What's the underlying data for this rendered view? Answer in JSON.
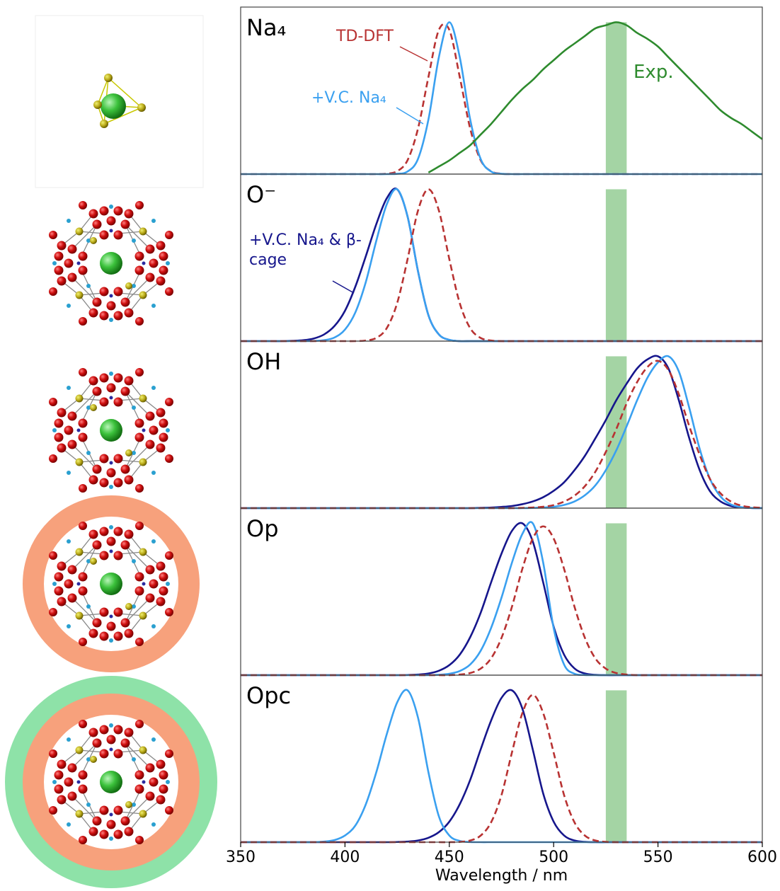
{
  "chart_data": [
    {
      "type": "line",
      "title": "Na₄",
      "xlim": [
        350,
        600
      ],
      "ylim": [
        0,
        1.1
      ],
      "x": [
        350,
        355,
        360,
        365,
        370,
        375,
        380,
        385,
        390,
        395,
        400,
        405,
        410,
        415,
        420,
        425,
        430,
        435,
        440,
        445,
        450,
        455,
        460,
        465,
        470,
        475,
        480,
        485,
        490,
        495,
        500,
        505,
        510,
        515,
        520,
        525,
        530,
        535,
        540,
        545,
        550,
        555,
        560,
        565,
        570,
        575,
        580,
        585,
        590,
        595,
        600
      ],
      "highlight": {
        "x": [
          525,
          535
        ],
        "y": 1,
        "color": "#94cc94"
      },
      "series": [
        {
          "name": "TD-DFT",
          "color": "#b83232",
          "linestyle": "dashed",
          "values": [
            0,
            0,
            0,
            0,
            0,
            0,
            0,
            0,
            0,
            0,
            0,
            0,
            0,
            0,
            0.003,
            0.019,
            0.092,
            0.3,
            0.64,
            0.95,
            0.95,
            0.64,
            0.3,
            0.092,
            0.019,
            0.003,
            0,
            0,
            0,
            0,
            0,
            0,
            0,
            0,
            0,
            0,
            0,
            0,
            0,
            0,
            0,
            0,
            0,
            0,
            0,
            0,
            0,
            0,
            0,
            0,
            0
          ]
        },
        {
          "name": "+V.C. Na₄",
          "color": "#3aa0f0",
          "linestyle": "solid",
          "values": [
            0,
            0,
            0,
            0,
            0,
            0,
            0,
            0,
            0,
            0,
            0,
            0,
            0,
            0,
            0,
            0.002,
            0.017,
            0.1,
            0.36,
            0.77,
            1,
            0.77,
            0.36,
            0.1,
            0.017,
            0.002,
            0,
            0,
            0,
            0,
            0,
            0,
            0,
            0,
            0,
            0,
            0,
            0,
            0,
            0,
            0,
            0,
            0,
            0,
            0,
            0,
            0,
            0,
            0,
            0,
            0
          ]
        },
        {
          "name": "Exp.",
          "color": "#2e8b2e",
          "linestyle": "solid",
          "values": [
            null,
            null,
            null,
            null,
            null,
            null,
            null,
            null,
            null,
            null,
            null,
            null,
            null,
            null,
            null,
            null,
            null,
            null,
            0.01,
            0.05,
            0.09,
            0.14,
            0.19,
            0.26,
            0.33,
            0.41,
            0.49,
            0.56,
            0.62,
            0.69,
            0.75,
            0.81,
            0.86,
            0.91,
            0.96,
            0.98,
            1.0,
            0.98,
            0.93,
            0.89,
            0.84,
            0.77,
            0.7,
            0.63,
            0.56,
            0.49,
            0.42,
            0.37,
            0.33,
            0.28,
            0.23
          ]
        }
      ]
    },
    {
      "type": "line",
      "title": "O⁻",
      "xlim": [
        350,
        600
      ],
      "ylim": [
        0,
        1.1
      ],
      "x": [
        350,
        355,
        360,
        365,
        370,
        375,
        380,
        385,
        390,
        395,
        400,
        405,
        410,
        415,
        420,
        425,
        430,
        435,
        440,
        445,
        450,
        455,
        460,
        465,
        470,
        475,
        480,
        485,
        490,
        495,
        500,
        505,
        510,
        515,
        520,
        525,
        530,
        535,
        540,
        545,
        550,
        555,
        560,
        565,
        570,
        575,
        580,
        585,
        590,
        595,
        600
      ],
      "highlight": {
        "x": [
          525,
          535
        ],
        "y": 1,
        "color": "#94cc94"
      },
      "series": [
        {
          "name": "+V.C. Na₄ & β-cage",
          "color": "#16168c",
          "linestyle": "solid",
          "values": [
            0,
            0,
            0,
            0,
            0,
            0.002,
            0.006,
            0.017,
            0.044,
            0.1,
            0.2,
            0.36,
            0.56,
            0.77,
            0.94,
            1,
            0.82,
            0.46,
            0.17,
            0.044,
            0.008,
            0,
            0,
            0,
            0,
            0,
            0,
            0,
            0,
            0,
            0,
            0,
            0,
            0,
            0,
            0,
            0,
            0,
            0,
            0,
            0,
            0,
            0,
            0,
            0,
            0,
            0,
            0,
            0,
            0,
            0
          ]
        },
        {
          "color": "#3aa0f0",
          "linestyle": "solid",
          "values": [
            0,
            0,
            0,
            0,
            0,
            0,
            0,
            0.001,
            0.006,
            0.024,
            0.076,
            0.19,
            0.39,
            0.66,
            0.9,
            1,
            0.82,
            0.46,
            0.17,
            0.044,
            0.008,
            0,
            0,
            0,
            0,
            0,
            0,
            0,
            0,
            0,
            0,
            0,
            0,
            0,
            0,
            0,
            0,
            0,
            0,
            0,
            0,
            0,
            0,
            0,
            0,
            0,
            0,
            0,
            0,
            0,
            0
          ]
        },
        {
          "color": "#b83232",
          "linestyle": "dashed",
          "values": [
            0,
            0,
            0,
            0,
            0,
            0,
            0,
            0,
            0,
            0,
            0,
            0,
            0.004,
            0.021,
            0.085,
            0.25,
            0.54,
            0.86,
            1,
            0.86,
            0.54,
            0.25,
            0.085,
            0.021,
            0.004,
            0,
            0,
            0,
            0,
            0,
            0,
            0,
            0,
            0,
            0,
            0,
            0,
            0,
            0,
            0,
            0,
            0,
            0,
            0,
            0,
            0,
            0,
            0,
            0,
            0,
            0
          ]
        }
      ]
    },
    {
      "type": "line",
      "title": "OH",
      "xlim": [
        350,
        600
      ],
      "ylim": [
        0,
        1.1
      ],
      "x": [
        350,
        355,
        360,
        365,
        370,
        375,
        380,
        385,
        390,
        395,
        400,
        405,
        410,
        415,
        420,
        425,
        430,
        435,
        440,
        445,
        450,
        455,
        460,
        465,
        470,
        475,
        480,
        485,
        490,
        495,
        500,
        505,
        510,
        515,
        520,
        525,
        530,
        535,
        540,
        545,
        550,
        555,
        560,
        565,
        570,
        575,
        580,
        585,
        590,
        595,
        600
      ],
      "highlight": {
        "x": [
          525,
          535
        ],
        "y": 1,
        "color": "#94cc94"
      },
      "series": [
        {
          "color": "#16168c",
          "linestyle": "solid",
          "values": [
            0,
            0,
            0,
            0,
            0,
            0,
            0,
            0,
            0,
            0,
            0,
            0,
            0,
            0,
            0,
            0,
            0,
            0,
            0,
            0,
            0,
            0,
            0,
            0.002,
            0.004,
            0.008,
            0.014,
            0.026,
            0.044,
            0.072,
            0.114,
            0.17,
            0.25,
            0.345,
            0.46,
            0.58,
            0.71,
            0.82,
            0.92,
            0.98,
            1,
            0.92,
            0.71,
            0.46,
            0.25,
            0.11,
            0.044,
            0.014,
            0.004,
            0.001,
            0
          ]
        },
        {
          "color": "#3aa0f0",
          "linestyle": "solid",
          "values": [
            0,
            0,
            0,
            0,
            0,
            0,
            0,
            0,
            0,
            0,
            0,
            0,
            0,
            0,
            0,
            0,
            0,
            0,
            0,
            0,
            0,
            0,
            0,
            0,
            0,
            0,
            0,
            0,
            0.0015,
            0.004,
            0.009,
            0.021,
            0.044,
            0.085,
            0.15,
            0.25,
            0.38,
            0.54,
            0.71,
            0.86,
            0.96,
            1,
            0.9,
            0.66,
            0.39,
            0.19,
            0.076,
            0.024,
            0.006,
            0.001,
            0
          ]
        },
        {
          "color": "#b83232",
          "linestyle": "dashed",
          "values": [
            0,
            0,
            0,
            0,
            0,
            0,
            0,
            0,
            0,
            0,
            0,
            0,
            0,
            0,
            0,
            0,
            0,
            0,
            0,
            0,
            0,
            0,
            0,
            0,
            0,
            0,
            0,
            0.0015,
            0.004,
            0.009,
            0.02,
            0.043,
            0.082,
            0.145,
            0.24,
            0.37,
            0.52,
            0.69,
            0.83,
            0.93,
            0.97,
            0.91,
            0.75,
            0.54,
            0.35,
            0.19,
            0.097,
            0.043,
            0.016,
            0.006,
            0.002
          ]
        }
      ]
    },
    {
      "type": "line",
      "title": "Op",
      "xlim": [
        350,
        600
      ],
      "ylim": [
        0,
        1.1
      ],
      "x": [
        350,
        355,
        360,
        365,
        370,
        375,
        380,
        385,
        390,
        395,
        400,
        405,
        410,
        415,
        420,
        425,
        430,
        435,
        440,
        445,
        450,
        455,
        460,
        465,
        470,
        475,
        480,
        485,
        490,
        495,
        500,
        505,
        510,
        515,
        520,
        525,
        530,
        535,
        540,
        545,
        550,
        555,
        560,
        565,
        570,
        575,
        580,
        585,
        590,
        595,
        600
      ],
      "highlight": {
        "x": [
          525,
          535
        ],
        "y": 1,
        "color": "#94cc94"
      },
      "series": [
        {
          "color": "#16168c",
          "linestyle": "solid",
          "values": [
            0,
            0,
            0,
            0,
            0,
            0,
            0,
            0,
            0,
            0,
            0,
            0,
            0,
            0,
            0,
            0,
            0.0012,
            0.004,
            0.011,
            0.029,
            0.066,
            0.135,
            0.25,
            0.41,
            0.61,
            0.8,
            0.95,
            1,
            0.88,
            0.61,
            0.32,
            0.135,
            0.044,
            0.011,
            0.002,
            0,
            0,
            0,
            0,
            0,
            0,
            0,
            0,
            0,
            0,
            0,
            0,
            0,
            0,
            0,
            0
          ]
        },
        {
          "color": "#3aa0f0",
          "linestyle": "solid",
          "values": [
            0,
            0,
            0,
            0,
            0,
            0,
            0,
            0,
            0,
            0,
            0,
            0,
            0,
            0,
            0,
            0,
            0,
            0,
            0,
            0.0025,
            0.009,
            0.027,
            0.07,
            0.16,
            0.31,
            0.51,
            0.74,
            0.93,
            1,
            0.74,
            0.31,
            0.07,
            0.009,
            0.001,
            0,
            0,
            0,
            0,
            0,
            0,
            0,
            0,
            0,
            0,
            0,
            0,
            0,
            0,
            0,
            0,
            0
          ]
        },
        {
          "color": "#b83232",
          "linestyle": "dashed",
          "values": [
            0,
            0,
            0,
            0,
            0,
            0,
            0,
            0,
            0,
            0,
            0,
            0,
            0,
            0,
            0,
            0,
            0,
            0,
            0,
            0,
            0,
            0.004,
            0.014,
            0.043,
            0.11,
            0.245,
            0.45,
            0.7,
            0.9,
            0.98,
            0.9,
            0.7,
            0.45,
            0.245,
            0.11,
            0.043,
            0.014,
            0.004,
            0,
            0,
            0,
            0,
            0,
            0,
            0,
            0,
            0,
            0,
            0,
            0,
            0
          ]
        }
      ]
    },
    {
      "type": "line",
      "title": "Opc",
      "xlim": [
        350,
        600
      ],
      "ylim": [
        0,
        1.1
      ],
      "xticks": [
        350,
        400,
        450,
        500,
        550,
        600
      ],
      "xlabel": "Wavelength / nm",
      "x": [
        350,
        355,
        360,
        365,
        370,
        375,
        380,
        385,
        390,
        395,
        400,
        405,
        410,
        415,
        420,
        425,
        430,
        435,
        440,
        445,
        450,
        455,
        460,
        465,
        470,
        475,
        480,
        485,
        490,
        495,
        500,
        505,
        510,
        515,
        520,
        525,
        530,
        535,
        540,
        545,
        550,
        555,
        560,
        565,
        570,
        575,
        580,
        585,
        590,
        595,
        600
      ],
      "highlight": {
        "x": [
          525,
          535
        ],
        "y": 1,
        "color": "#94cc94"
      },
      "series": [
        {
          "color": "#16168c",
          "linestyle": "solid",
          "values": [
            0,
            0,
            0,
            0,
            0,
            0,
            0,
            0,
            0,
            0,
            0,
            0,
            0,
            0,
            0,
            0.0012,
            0.004,
            0.011,
            0.029,
            0.066,
            0.135,
            0.25,
            0.41,
            0.61,
            0.8,
            0.95,
            1,
            0.88,
            0.61,
            0.32,
            0.135,
            0.044,
            0.011,
            0.002,
            0,
            0,
            0,
            0,
            0,
            0,
            0,
            0,
            0,
            0,
            0,
            0,
            0,
            0,
            0,
            0,
            0
          ]
        },
        {
          "color": "#3aa0f0",
          "linestyle": "solid",
          "values": [
            0,
            0,
            0,
            0,
            0,
            0,
            0,
            0,
            0.004,
            0.014,
            0.044,
            0.11,
            0.25,
            0.46,
            0.71,
            0.92,
            1,
            0.82,
            0.46,
            0.17,
            0.044,
            0.008,
            0.001,
            0,
            0,
            0,
            0,
            0,
            0,
            0,
            0,
            0,
            0,
            0,
            0,
            0,
            0,
            0,
            0,
            0,
            0,
            0,
            0,
            0,
            0,
            0,
            0,
            0,
            0,
            0,
            0
          ]
        },
        {
          "color": "#b83232",
          "linestyle": "dashed",
          "values": [
            0,
            0,
            0,
            0,
            0,
            0,
            0,
            0,
            0,
            0,
            0,
            0,
            0,
            0,
            0,
            0,
            0,
            0,
            0,
            0,
            0,
            0.002,
            0.011,
            0.043,
            0.13,
            0.31,
            0.59,
            0.85,
            0.97,
            0.85,
            0.59,
            0.31,
            0.13,
            0.043,
            0.011,
            0.002,
            0,
            0,
            0,
            0,
            0,
            0,
            0,
            0,
            0,
            0,
            0,
            0,
            0,
            0,
            0
          ]
        }
      ]
    }
  ]
}
